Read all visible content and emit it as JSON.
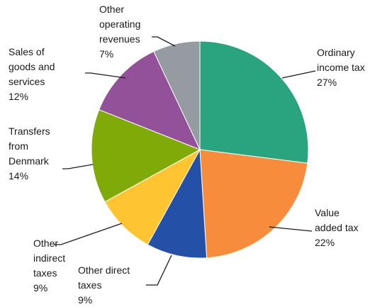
{
  "chart_data": {
    "type": "pie",
    "title": "",
    "unit": "%",
    "slices": [
      {
        "label_lines": [
          "Ordinary",
          "income tax"
        ],
        "value": 27,
        "value_label": "27%",
        "color": "#2aa37f"
      },
      {
        "label_lines": [
          "Value",
          "added tax"
        ],
        "value": 22,
        "value_label": "22%",
        "color": "#f68c3c"
      },
      {
        "label_lines": [
          "Other direct",
          "taxes"
        ],
        "value": 9,
        "value_label": "9%",
        "color": "#2450a8"
      },
      {
        "label_lines": [
          "Other",
          "indirect",
          "taxes"
        ],
        "value": 9,
        "value_label": "9%",
        "color": "#fec432"
      },
      {
        "label_lines": [
          "Transfers",
          "from",
          "Denmark"
        ],
        "value": 14,
        "value_label": "14%",
        "color": "#7faa07"
      },
      {
        "label_lines": [
          "Sales of",
          "goods and",
          "services"
        ],
        "value": 12,
        "value_label": "12%",
        "color": "#935199"
      },
      {
        "label_lines": [
          "Other",
          "operating",
          "revenues"
        ],
        "value": 7,
        "value_label": "7%",
        "color": "#959ba0"
      }
    ]
  }
}
